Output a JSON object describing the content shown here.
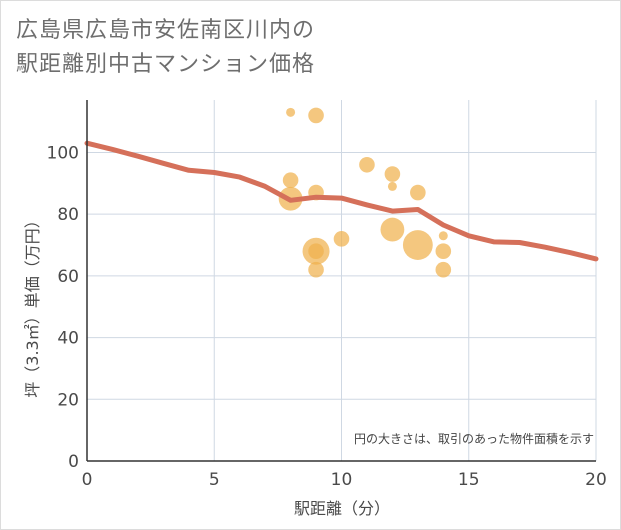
{
  "title": {
    "line1": "広島県広島市安佐南区川内の",
    "line2": "駅距離別中古マンション価格"
  },
  "chart_data": {
    "type": "scatter",
    "xlabel": "駅距離（分）",
    "ylabel": "坪（3.3㎡）単価（万円）",
    "xlim": [
      0,
      20
    ],
    "ylim": [
      0,
      117
    ],
    "x_ticks": [
      0,
      5,
      10,
      15,
      20
    ],
    "y_ticks": [
      0,
      20,
      40,
      60,
      80,
      100
    ],
    "grid": true,
    "note": "円の大きさは、取引のあった物件面積を示す",
    "colors": {
      "bubble": "#f0b24d",
      "trend": "#d5705a",
      "grid": "#cfd8e3"
    },
    "bubbles": [
      {
        "x": 8,
        "y": 113,
        "size": 1
      },
      {
        "x": 9,
        "y": 112,
        "size": 3
      },
      {
        "x": 8,
        "y": 91,
        "size": 3
      },
      {
        "x": 8,
        "y": 85,
        "size": 7
      },
      {
        "x": 9,
        "y": 87,
        "size": 3
      },
      {
        "x": 9,
        "y": 68,
        "size": 9
      },
      {
        "x": 9,
        "y": 68,
        "size": 3
      },
      {
        "x": 9,
        "y": 62,
        "size": 3
      },
      {
        "x": 10,
        "y": 72,
        "size": 3
      },
      {
        "x": 11,
        "y": 96,
        "size": 3
      },
      {
        "x": 12,
        "y": 93,
        "size": 3
      },
      {
        "x": 12,
        "y": 89,
        "size": 1
      },
      {
        "x": 12,
        "y": 75,
        "size": 7
      },
      {
        "x": 13,
        "y": 87,
        "size": 3
      },
      {
        "x": 13,
        "y": 70,
        "size": 11
      },
      {
        "x": 14,
        "y": 73,
        "size": 1
      },
      {
        "x": 14,
        "y": 68,
        "size": 3
      },
      {
        "x": 14,
        "y": 62,
        "size": 3
      }
    ],
    "trend": [
      {
        "x": 0,
        "y": 103
      },
      {
        "x": 1,
        "y": 101
      },
      {
        "x": 2,
        "y": 98.8
      },
      {
        "x": 3,
        "y": 96.5
      },
      {
        "x": 4,
        "y": 94.2
      },
      {
        "x": 5,
        "y": 93.5
      },
      {
        "x": 6,
        "y": 92
      },
      {
        "x": 7,
        "y": 89
      },
      {
        "x": 8,
        "y": 84.5
      },
      {
        "x": 9,
        "y": 85.5
      },
      {
        "x": 10,
        "y": 85.2
      },
      {
        "x": 11,
        "y": 83
      },
      {
        "x": 12,
        "y": 81
      },
      {
        "x": 13,
        "y": 81.5
      },
      {
        "x": 14,
        "y": 76.5
      },
      {
        "x": 15,
        "y": 73
      },
      {
        "x": 16,
        "y": 71
      },
      {
        "x": 17,
        "y": 70.8
      },
      {
        "x": 18,
        "y": 69.3
      },
      {
        "x": 19,
        "y": 67.5
      },
      {
        "x": 20,
        "y": 65.5
      }
    ]
  }
}
